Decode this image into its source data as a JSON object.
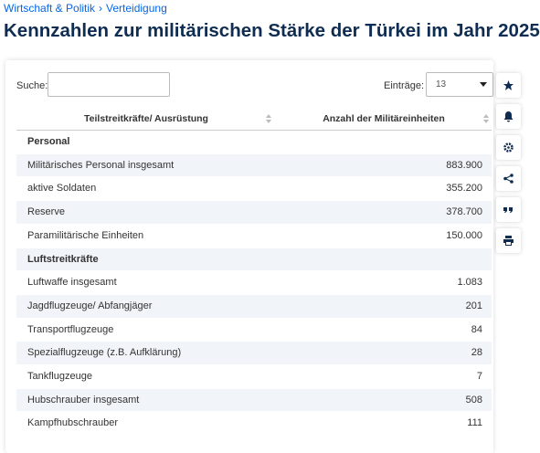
{
  "breadcrumb": {
    "items": [
      "Wirtschaft & Politik",
      "Verteidigung"
    ],
    "separator": "›"
  },
  "title": "Kennzahlen zur militärischen Stärke der Türkei im Jahr 2025",
  "controls": {
    "search_label": "Suche:",
    "entries_label": "Einträge:",
    "entries_value": "13"
  },
  "table": {
    "headers": [
      "Teilstreitkräfte/ Ausrüstung",
      "Anzahl der Militäreinheiten"
    ],
    "rows": [
      [
        "Personal"
      ],
      [
        "Militärisches Personal insgesamt",
        "883.900"
      ],
      [
        "aktive Soldaten",
        "355.200"
      ],
      [
        "Reserve",
        "378.700"
      ],
      [
        "Paramilitärische Einheiten",
        "150.000"
      ],
      [
        "Luftstreitkräfte"
      ],
      [
        "Luftwaffe insgesamt",
        "1.083"
      ],
      [
        "Jagdflugzeuge/ Abfangjäger",
        "201"
      ],
      [
        "Transportflugzeuge",
        "84"
      ],
      [
        "Spezialflugzeuge (z.B. Aufklärung)",
        "28"
      ],
      [
        "Tankflugzeuge",
        "7"
      ],
      [
        "Hubschrauber insgesamt",
        "508"
      ],
      [
        "Kampfhubschrauber",
        "111"
      ]
    ]
  }
}
